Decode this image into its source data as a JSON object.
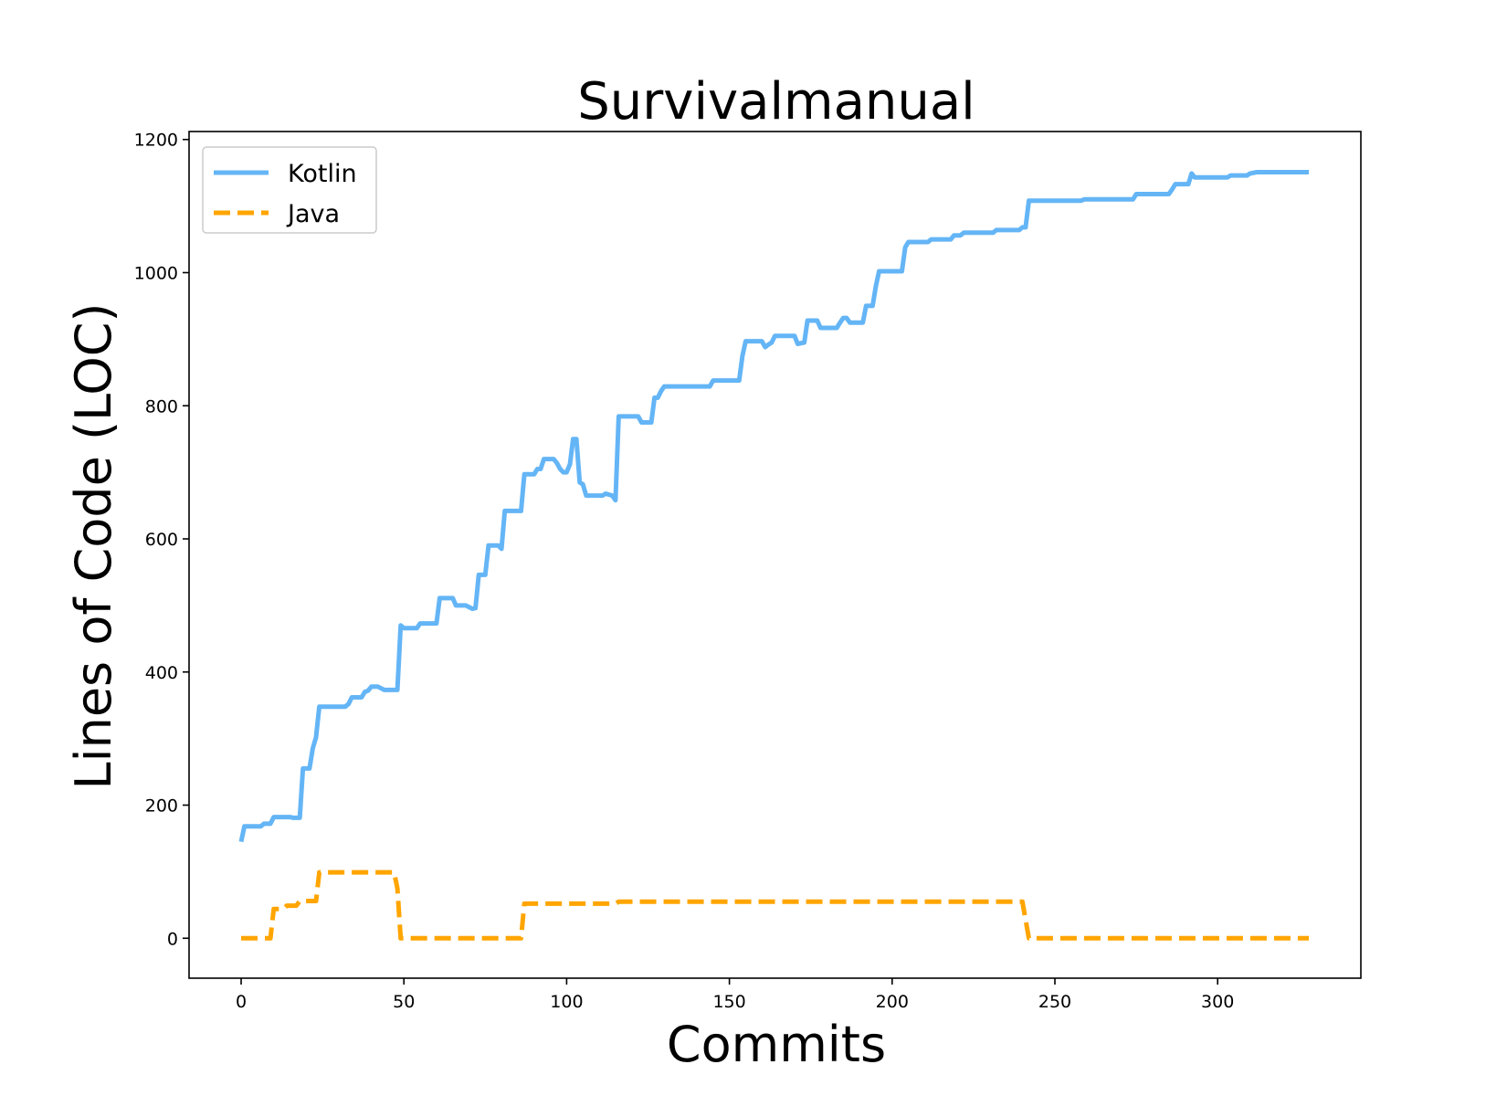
{
  "chart_data": {
    "type": "line",
    "title": "Survivalmanual",
    "xlabel": "Commits",
    "ylabel": "Lines of Code (LOC)",
    "xlim": [
      -16,
      344
    ],
    "ylim": [
      -60,
      1212
    ],
    "xticks": [
      0,
      50,
      100,
      150,
      200,
      250,
      300
    ],
    "yticks": [
      0,
      200,
      400,
      600,
      800,
      1000,
      1200
    ],
    "grid": false,
    "legend_position": "top-left",
    "series": [
      {
        "name": "Kotlin",
        "color": "#64b5f6",
        "style": "solid",
        "points": [
          [
            0,
            145
          ],
          [
            1,
            168
          ],
          [
            6,
            168
          ],
          [
            7,
            172
          ],
          [
            9,
            172
          ],
          [
            10,
            182
          ],
          [
            15,
            182
          ],
          [
            16,
            181
          ],
          [
            18,
            181
          ],
          [
            19,
            255
          ],
          [
            21,
            255
          ],
          [
            22,
            285
          ],
          [
            23,
            302
          ],
          [
            24,
            348
          ],
          [
            32,
            348
          ],
          [
            33,
            352
          ],
          [
            34,
            362
          ],
          [
            37,
            362
          ],
          [
            38,
            370
          ],
          [
            39,
            372
          ],
          [
            40,
            378
          ],
          [
            42,
            378
          ],
          [
            44,
            373
          ],
          [
            48,
            373
          ],
          [
            49,
            470
          ],
          [
            50,
            466
          ],
          [
            54,
            466
          ],
          [
            55,
            473
          ],
          [
            60,
            473
          ],
          [
            61,
            511
          ],
          [
            65,
            511
          ],
          [
            66,
            500
          ],
          [
            69,
            500
          ],
          [
            71,
            495
          ],
          [
            72,
            496
          ],
          [
            73,
            546
          ],
          [
            75,
            546
          ],
          [
            76,
            590
          ],
          [
            79,
            590
          ],
          [
            80,
            585
          ],
          [
            81,
            642
          ],
          [
            86,
            642
          ],
          [
            87,
            697
          ],
          [
            90,
            697
          ],
          [
            91,
            705
          ],
          [
            92,
            705
          ],
          [
            93,
            720
          ],
          [
            96,
            720
          ],
          [
            97,
            714
          ],
          [
            98,
            705
          ],
          [
            99,
            700
          ],
          [
            100,
            700
          ],
          [
            101,
            712
          ],
          [
            102,
            750
          ],
          [
            103,
            750
          ],
          [
            104,
            685
          ],
          [
            105,
            682
          ],
          [
            106,
            665
          ],
          [
            111,
            665
          ],
          [
            112,
            668
          ],
          [
            114,
            665
          ],
          [
            115,
            658
          ],
          [
            116,
            784
          ],
          [
            122,
            784
          ],
          [
            123,
            775
          ],
          [
            126,
            775
          ],
          [
            127,
            812
          ],
          [
            128,
            812
          ],
          [
            129,
            822
          ],
          [
            130,
            829
          ],
          [
            144,
            829
          ],
          [
            145,
            838
          ],
          [
            153,
            838
          ],
          [
            154,
            875
          ],
          [
            155,
            897
          ],
          [
            160,
            897
          ],
          [
            161,
            888
          ],
          [
            162,
            892
          ],
          [
            163,
            895
          ],
          [
            164,
            905
          ],
          [
            170,
            905
          ],
          [
            171,
            893
          ],
          [
            173,
            895
          ],
          [
            174,
            928
          ],
          [
            177,
            928
          ],
          [
            178,
            917
          ],
          [
            183,
            917
          ],
          [
            184,
            925
          ],
          [
            185,
            932
          ],
          [
            186,
            932
          ],
          [
            187,
            925
          ],
          [
            188,
            925
          ],
          [
            191,
            925
          ],
          [
            192,
            950
          ],
          [
            194,
            950
          ],
          [
            195,
            980
          ],
          [
            196,
            1002
          ],
          [
            203,
            1002
          ],
          [
            204,
            1038
          ],
          [
            205,
            1046
          ],
          [
            211,
            1046
          ],
          [
            212,
            1050
          ],
          [
            218,
            1050
          ],
          [
            219,
            1056
          ],
          [
            221,
            1056
          ],
          [
            222,
            1060
          ],
          [
            231,
            1060
          ],
          [
            232,
            1064
          ],
          [
            239,
            1064
          ],
          [
            240,
            1068
          ],
          [
            241,
            1068
          ],
          [
            242,
            1108
          ],
          [
            258,
            1108
          ],
          [
            259,
            1110
          ],
          [
            274,
            1110
          ],
          [
            275,
            1118
          ],
          [
            285,
            1118
          ],
          [
            286,
            1125
          ],
          [
            287,
            1133
          ],
          [
            291,
            1133
          ],
          [
            292,
            1149
          ],
          [
            293,
            1143
          ],
          [
            303,
            1143
          ],
          [
            304,
            1146
          ],
          [
            309,
            1146
          ],
          [
            310,
            1149
          ],
          [
            312,
            1151
          ],
          [
            328,
            1151
          ]
        ]
      },
      {
        "name": "Java",
        "color": "#ffa500",
        "style": "dashed",
        "points": [
          [
            0,
            0
          ],
          [
            9,
            0
          ],
          [
            10,
            44
          ],
          [
            13,
            44
          ],
          [
            14,
            49
          ],
          [
            17,
            49
          ],
          [
            18,
            56
          ],
          [
            23,
            56
          ],
          [
            24,
            99
          ],
          [
            47,
            99
          ],
          [
            48,
            75
          ],
          [
            49,
            0
          ],
          [
            86,
            0
          ],
          [
            87,
            52
          ],
          [
            115,
            52
          ],
          [
            116,
            55
          ],
          [
            240,
            55
          ],
          [
            242,
            0
          ],
          [
            328,
            0
          ]
        ]
      }
    ]
  }
}
